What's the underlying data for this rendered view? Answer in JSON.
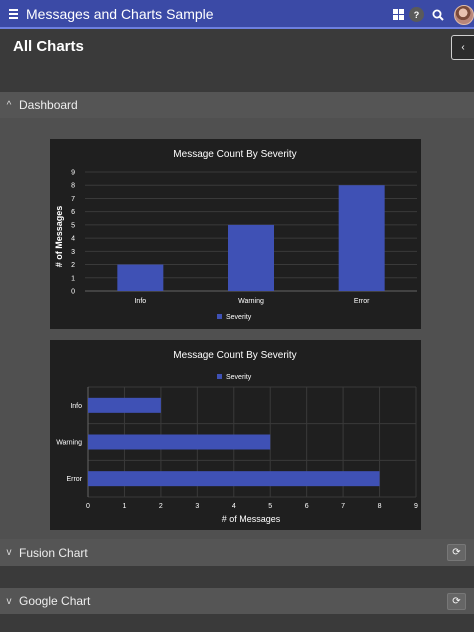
{
  "app": {
    "title": "Messages and Charts Sample",
    "help_label": "?"
  },
  "page": {
    "title": "All Charts",
    "collapse_glyph": "‹"
  },
  "sections": {
    "dashboard": {
      "label": "Dashboard",
      "chevron": "^"
    },
    "fusion": {
      "label": "Fusion Chart",
      "chevron": "v",
      "refresh_glyph": "⟳"
    },
    "google": {
      "label": "Google Chart",
      "chevron": "v",
      "refresh_glyph": "⟳"
    }
  },
  "colors": {
    "accent": "#3b4aa6",
    "bar": "#3f51b5",
    "chart_bg": "#1f1f1f"
  },
  "chart_data": [
    {
      "type": "bar",
      "orientation": "vertical",
      "title": "Message Count By Severity",
      "xlabel": "",
      "ylabel": "# of Messages",
      "categories": [
        "Info",
        "Warning",
        "Error"
      ],
      "series": [
        {
          "name": "Severity",
          "values": [
            2,
            5,
            8
          ]
        }
      ],
      "ylim": [
        0,
        9
      ],
      "yticks": [
        "0",
        "1",
        "2",
        "3",
        "4",
        "5",
        "6",
        "7",
        "8",
        "9"
      ],
      "grid": true,
      "legend": "bottom"
    },
    {
      "type": "bar",
      "orientation": "horizontal",
      "title": "Message Count By Severity",
      "xlabel": "# of Messages",
      "ylabel": "",
      "categories": [
        "Info",
        "Warning",
        "Error"
      ],
      "series": [
        {
          "name": "Severity",
          "values": [
            2,
            5,
            8
          ]
        }
      ],
      "xlim": [
        0,
        9
      ],
      "xticks": [
        "0",
        "1",
        "2",
        "3",
        "4",
        "5",
        "6",
        "7",
        "8",
        "9"
      ],
      "grid": true,
      "legend": "top"
    }
  ]
}
